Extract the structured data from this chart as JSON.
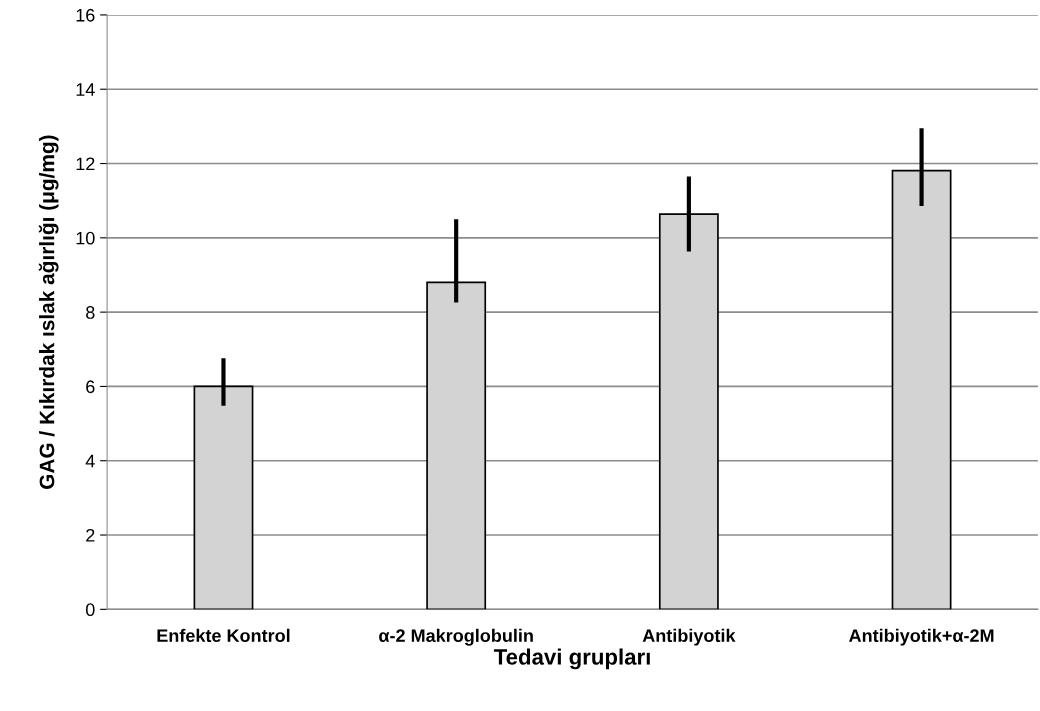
{
  "chart_data": {
    "type": "bar",
    "xlabel": "Tedavi grupları",
    "ylabel": "GAG / Kıkırdak ıslak ağırlığı (μg/mg)",
    "categories": [
      "Enfekte Kontrol",
      "α-2 Makroglobulin",
      "Antibiyotik",
      "Antibiyotik+α-2M"
    ],
    "values": [
      6.0,
      8.8,
      10.64,
      11.81
    ],
    "errors": [
      [
        5.48,
        6.76
      ],
      [
        8.26,
        10.5
      ],
      [
        9.63,
        11.65
      ],
      [
        10.86,
        12.95
      ]
    ],
    "color": "#d3d3d3",
    "ylim": [
      0,
      16
    ],
    "yticks": [
      0,
      2,
      4,
      6,
      8,
      10,
      12,
      14,
      16
    ],
    "grid": "y"
  }
}
